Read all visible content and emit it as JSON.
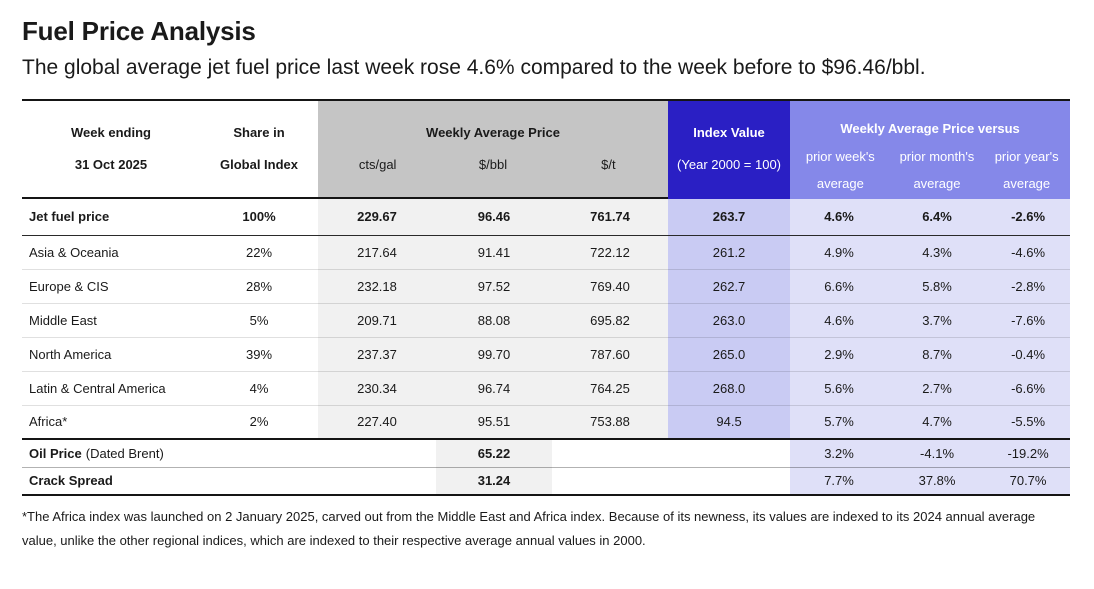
{
  "header": {
    "title": "Fuel Price Analysis",
    "subtitle": "The global average jet fuel price last week rose 4.6% compared to the week before to $96.46/bbl."
  },
  "table": {
    "colors": {
      "dark_blue": "#2a1fc4",
      "periwinkle": "#8588e9",
      "index_cell": "#c9cbf3",
      "versus_cell": "#dfe0f8",
      "header_gray": "#c5c5c5",
      "cell_gray": "#f1f1f1"
    },
    "week_ending": {
      "line1": "Week ending",
      "line2": "31 Oct 2025"
    },
    "share": {
      "line1": "Share in",
      "line2": "Global Index"
    },
    "weekly_avg_price": {
      "title": "Weekly Average Price",
      "units": [
        "cts/gal",
        "$/bbl",
        "$/t"
      ]
    },
    "index_value": {
      "title": "Index Value",
      "subtitle": "(Year 2000 = 100)"
    },
    "versus": {
      "title": "Weekly Average Price versus",
      "columns": [
        {
          "line1": "prior week's",
          "line2": "average"
        },
        {
          "line1": "prior month's",
          "line2": "average"
        },
        {
          "line1": "prior year's",
          "line2": "average"
        }
      ]
    },
    "rows": [
      {
        "type": "total",
        "label": "Jet fuel price",
        "suffix": "",
        "share": "100%",
        "cts_gal": "229.67",
        "usd_bbl": "96.46",
        "usd_t": "761.74",
        "index": "263.7",
        "prior_week": "4.6%",
        "prior_month": "6.4%",
        "prior_year": "-2.6%"
      },
      {
        "type": "region",
        "label": "Asia & Oceania",
        "suffix": "",
        "share": "22%",
        "cts_gal": "217.64",
        "usd_bbl": "91.41",
        "usd_t": "722.12",
        "index": "261.2",
        "prior_week": "4.9%",
        "prior_month": "4.3%",
        "prior_year": "-4.6%"
      },
      {
        "type": "region",
        "label": "Europe & CIS",
        "suffix": "",
        "share": "28%",
        "cts_gal": "232.18",
        "usd_bbl": "97.52",
        "usd_t": "769.40",
        "index": "262.7",
        "prior_week": "6.6%",
        "prior_month": "5.8%",
        "prior_year": "-2.8%"
      },
      {
        "type": "region",
        "label": "Middle East",
        "suffix": "",
        "share": "5%",
        "cts_gal": "209.71",
        "usd_bbl": "88.08",
        "usd_t": "695.82",
        "index": "263.0",
        "prior_week": "4.6%",
        "prior_month": "3.7%",
        "prior_year": "-7.6%"
      },
      {
        "type": "region",
        "label": "North America",
        "suffix": "",
        "share": "39%",
        "cts_gal": "237.37",
        "usd_bbl": "99.70",
        "usd_t": "787.60",
        "index": "265.0",
        "prior_week": "2.9%",
        "prior_month": "8.7%",
        "prior_year": "-0.4%"
      },
      {
        "type": "region",
        "label": "Latin & Central America",
        "suffix": "",
        "share": "4%",
        "cts_gal": "230.34",
        "usd_bbl": "96.74",
        "usd_t": "764.25",
        "index": "268.0",
        "prior_week": "5.6%",
        "prior_month": "2.7%",
        "prior_year": "-6.6%"
      },
      {
        "type": "region",
        "label": "Africa*",
        "suffix": "",
        "share": "2%",
        "cts_gal": "227.40",
        "usd_bbl": "95.51",
        "usd_t": "753.88",
        "index": "94.5",
        "prior_week": "5.7%",
        "prior_month": "4.7%",
        "prior_year": "-5.5%"
      },
      {
        "type": "summary",
        "label": "Oil Price",
        "suffix": "(Dated Brent)",
        "share": "",
        "cts_gal": "",
        "usd_bbl": "65.22",
        "usd_t": "",
        "index": "",
        "prior_week": "3.2%",
        "prior_month": "-4.1%",
        "prior_year": "-19.2%"
      },
      {
        "type": "summary",
        "label": "Crack Spread",
        "suffix": "",
        "share": "",
        "cts_gal": "",
        "usd_bbl": "31.24",
        "usd_t": "",
        "index": "",
        "prior_week": "7.7%",
        "prior_month": "37.8%",
        "prior_year": "70.7%"
      }
    ]
  },
  "footnote": "*The Africa index was launched on 2 January 2025, carved out from the Middle East and Africa index. Because of its newness, its values are indexed to its 2024 annual average value, unlike the other regional indices, which are indexed to their respective average annual values in 2000."
}
